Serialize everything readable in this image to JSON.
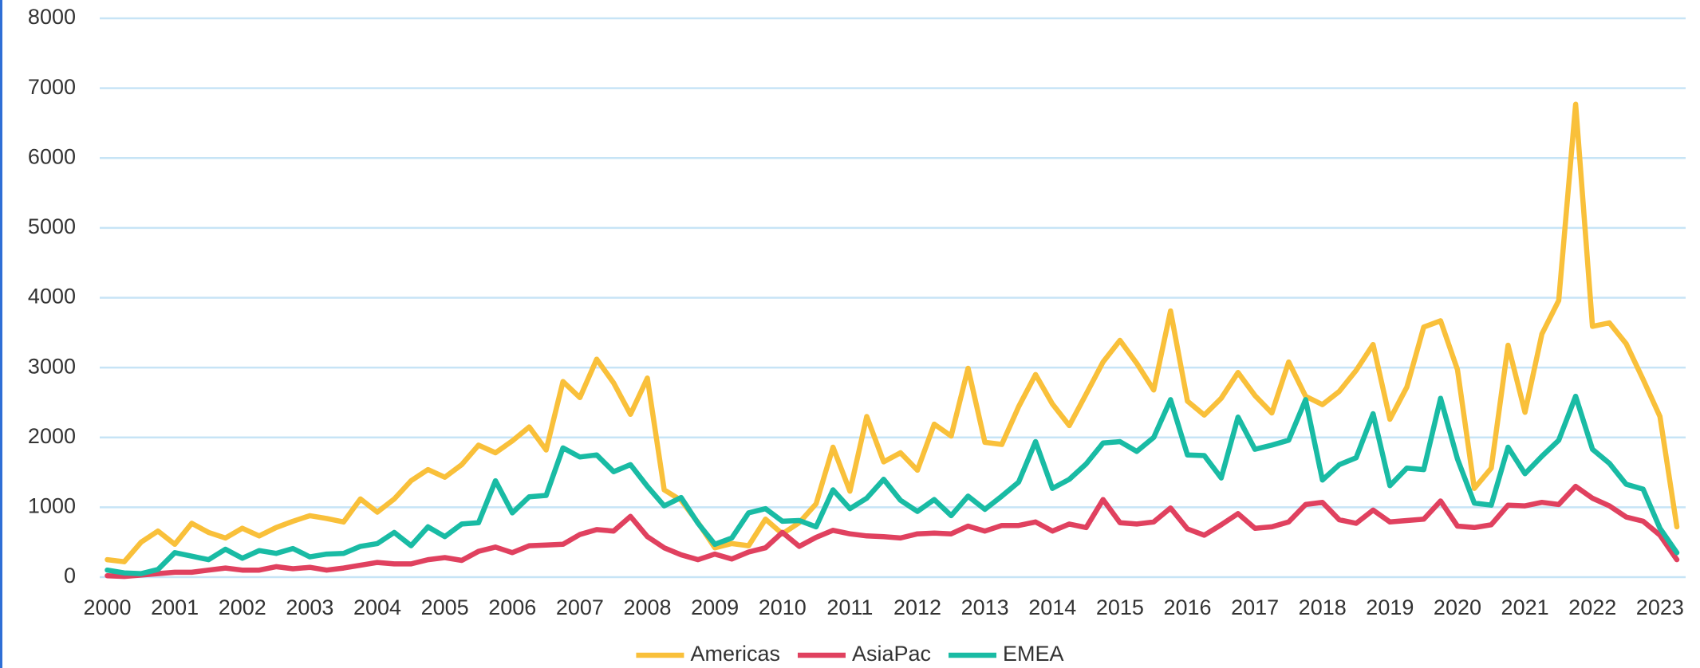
{
  "chart_data": {
    "type": "line",
    "categories": [
      "2000",
      null,
      null,
      null,
      "2001",
      null,
      null,
      null,
      "2002",
      null,
      null,
      null,
      "2003",
      null,
      null,
      null,
      "2004",
      null,
      null,
      null,
      "2005",
      null,
      null,
      null,
      "2006",
      null,
      null,
      null,
      "2007",
      null,
      null,
      null,
      "2008",
      null,
      null,
      null,
      "2009",
      null,
      null,
      null,
      "2010",
      null,
      null,
      null,
      "2011",
      null,
      null,
      null,
      "2012",
      null,
      null,
      null,
      "2013",
      null,
      null,
      null,
      "2014",
      null,
      null,
      null,
      "2015",
      null,
      null,
      null,
      "2016",
      null,
      null,
      null,
      "2017",
      null,
      null,
      null,
      "2018",
      null,
      null,
      null,
      "2019",
      null,
      null,
      null,
      "2020",
      null,
      null,
      null,
      "2021",
      null,
      null,
      null,
      "2022",
      null,
      null,
      null,
      "2023",
      null
    ],
    "series": [
      {
        "name": "Americas",
        "color": "#f9c03a",
        "values": [
          250,
          220,
          500,
          660,
          470,
          770,
          640,
          560,
          700,
          590,
          710,
          800,
          880,
          840,
          790,
          1120,
          930,
          1120,
          1380,
          1540,
          1430,
          1610,
          1890,
          1780,
          1950,
          2150,
          1820,
          2800,
          2570,
          3120,
          2780,
          2330,
          2850,
          1250,
          1100,
          780,
          420,
          480,
          450,
          830,
          620,
          780,
          1050,
          1860,
          1230,
          2300,
          1650,
          1780,
          1530,
          2190,
          2020,
          2990,
          1930,
          1900,
          2440,
          2900,
          2480,
          2170,
          2620,
          3080,
          3390,
          3060,
          2680,
          3810,
          2520,
          2320,
          2560,
          2930,
          2600,
          2350,
          3080,
          2590,
          2470,
          2660,
          2960,
          3330,
          2260,
          2720,
          3580,
          3670,
          2970,
          1270,
          1560,
          3320,
          2360,
          3480,
          3960,
          6770,
          3590,
          3640,
          3340,
          2830,
          2300,
          720
        ]
      },
      {
        "name": "AsiaPac",
        "color": "#e0415f",
        "values": [
          20,
          10,
          30,
          50,
          70,
          70,
          100,
          130,
          100,
          100,
          150,
          120,
          140,
          100,
          130,
          170,
          210,
          190,
          190,
          250,
          280,
          240,
          370,
          430,
          350,
          450,
          460,
          470,
          610,
          680,
          660,
          870,
          580,
          420,
          320,
          250,
          330,
          260,
          360,
          420,
          640,
          440,
          570,
          670,
          620,
          590,
          580,
          560,
          620,
          630,
          620,
          730,
          660,
          740,
          740,
          790,
          660,
          760,
          710,
          1110,
          780,
          760,
          790,
          990,
          690,
          600,
          750,
          910,
          700,
          720,
          790,
          1040,
          1070,
          820,
          770,
          960,
          790,
          810,
          830,
          1090,
          730,
          710,
          750,
          1030,
          1020,
          1070,
          1040,
          1300,
          1130,
          1020,
          860,
          800,
          600,
          250
        ]
      },
      {
        "name": "EMEA",
        "color": "#19bba4",
        "values": [
          100,
          60,
          50,
          110,
          350,
          300,
          250,
          400,
          270,
          380,
          340,
          410,
          290,
          330,
          340,
          440,
          480,
          640,
          450,
          720,
          580,
          760,
          780,
          1380,
          920,
          1150,
          1170,
          1850,
          1720,
          1750,
          1510,
          1610,
          1300,
          1020,
          1140,
          770,
          470,
          560,
          920,
          980,
          800,
          810,
          720,
          1250,
          980,
          1130,
          1400,
          1100,
          940,
          1110,
          880,
          1160,
          970,
          1160,
          1360,
          1940,
          1270,
          1400,
          1620,
          1920,
          1940,
          1800,
          2000,
          2540,
          1750,
          1740,
          1420,
          2290,
          1830,
          1890,
          1960,
          2540,
          1390,
          1610,
          1710,
          2340,
          1310,
          1560,
          1540,
          2560,
          1690,
          1060,
          1030,
          1860,
          1480,
          1730,
          1960,
          2590,
          1830,
          1630,
          1330,
          1260,
          700,
          350
        ]
      }
    ],
    "ylim": [
      0,
      8000
    ],
    "yticks": [
      0,
      1000,
      2000,
      3000,
      4000,
      5000,
      6000,
      7000,
      8000
    ],
    "grid": true,
    "legend": "bottom"
  }
}
